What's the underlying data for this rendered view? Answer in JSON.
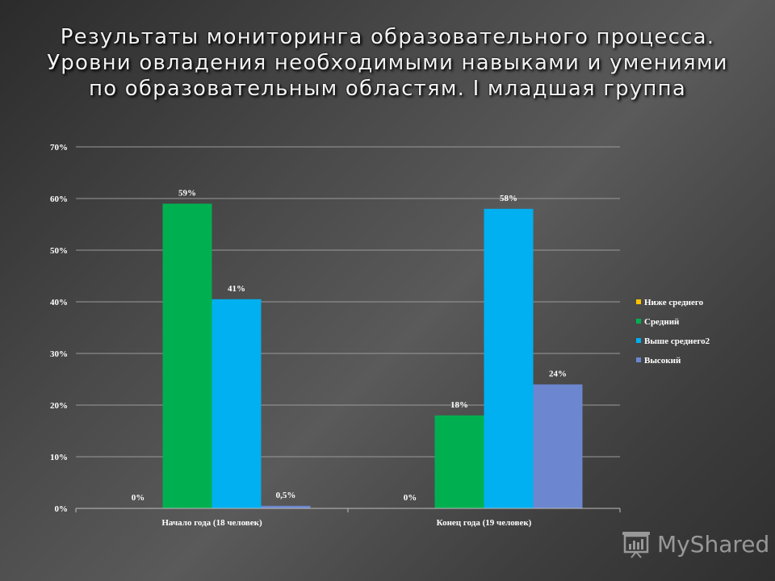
{
  "slide": {
    "title": "Результаты мониторинга образовательного процесса.\nУровни  овладения необходимыми навыками и умениями\nпо образовательным областям.  I младшая группа"
  },
  "chart_data": {
    "type": "bar",
    "categories": [
      "Начало года (18 человек)",
      "Конец года (19 человек)"
    ],
    "series": [
      {
        "name": "Ниже среднего",
        "color": "#FFC000",
        "values": [
          0,
          0
        ],
        "labels": [
          "0%",
          "0%"
        ]
      },
      {
        "name": "Средний",
        "color": "#00B050",
        "values": [
          59,
          18
        ],
        "labels": [
          "59%",
          "18%"
        ]
      },
      {
        "name": "Выше среднего2",
        "color": "#00B0F0",
        "values": [
          40.5,
          58
        ],
        "labels": [
          "41%",
          "58%"
        ]
      },
      {
        "name": "Высокий",
        "color": "#6C87D0",
        "values": [
          0.5,
          24
        ],
        "labels": [
          "0,5%",
          "24%"
        ]
      }
    ],
    "ylim": [
      0,
      70
    ],
    "yticks": [
      "0%",
      "10%",
      "20%",
      "30%",
      "40%",
      "50%",
      "60%",
      "70%"
    ],
    "grid": true,
    "legend_position": "right"
  },
  "watermark": {
    "text": "MyShared",
    "icon": "projector-screen-icon"
  }
}
